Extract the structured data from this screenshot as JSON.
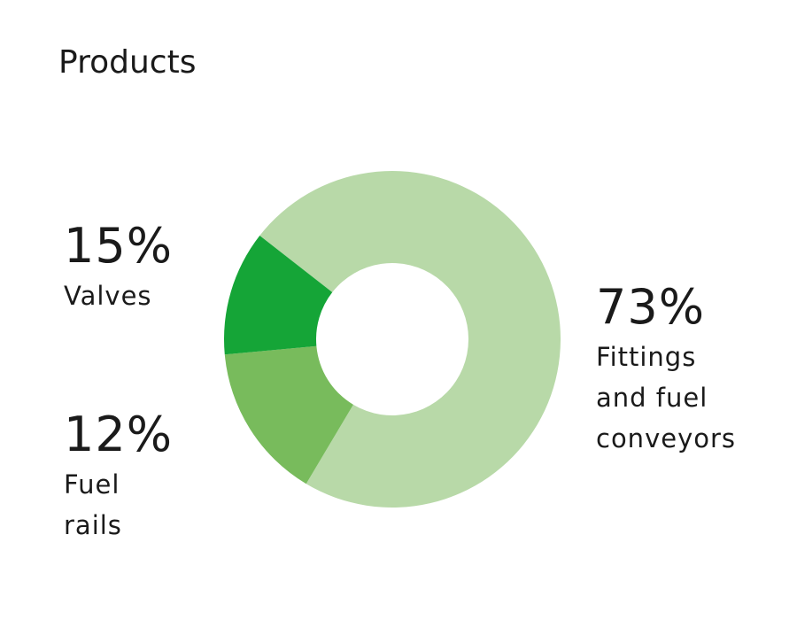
{
  "chart_data": {
    "type": "pie",
    "title": "Products",
    "donut": true,
    "slices": [
      {
        "label": "Fittings and fuel conveyors",
        "value": 73,
        "value_label": "73%",
        "color": "#b8d9a8"
      },
      {
        "label": "Valves",
        "value": 15,
        "value_label": "15%",
        "color": "#78bb5c"
      },
      {
        "label": "Fuel rails",
        "value": 12,
        "value_label": "12%",
        "color": "#15a537"
      }
    ]
  }
}
